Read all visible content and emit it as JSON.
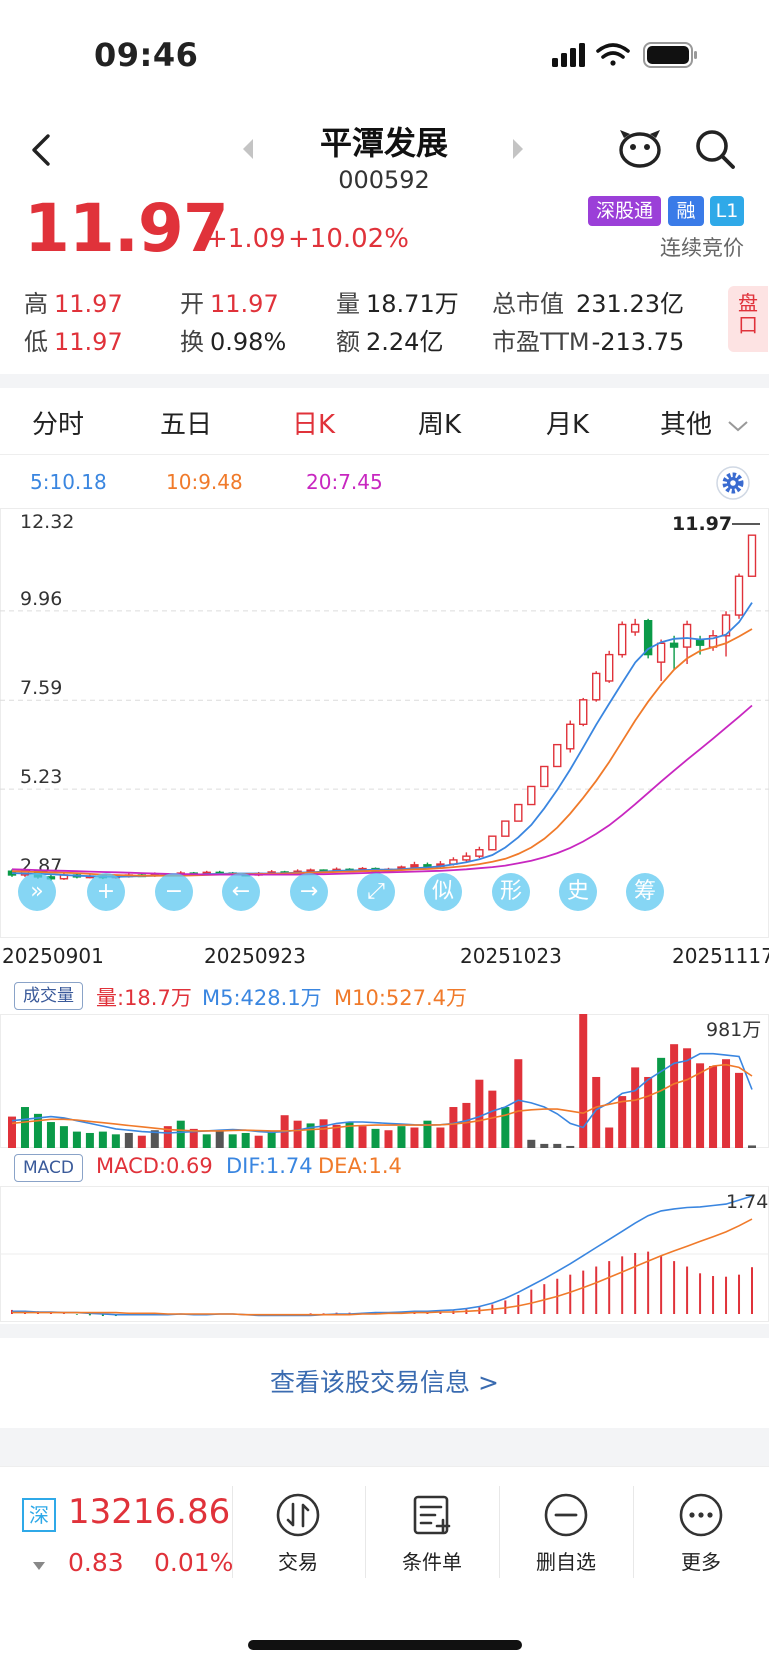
{
  "status_bar": {
    "time": "09:46"
  },
  "header": {
    "name": "平潭发展",
    "code": "000592"
  },
  "quote": {
    "price": "11.97",
    "change": "+1.09",
    "change_pct": "+10.02%",
    "badges": [
      "深股通",
      "融",
      "L1"
    ],
    "auction_status": "连续竞价"
  },
  "stats": {
    "high_label": "高",
    "high": "11.97",
    "low_label": "低",
    "low": "11.97",
    "open_label": "开",
    "open": "11.97",
    "turnover_label": "换",
    "turnover": "0.98%",
    "volume_label": "量",
    "volume": "18.71万",
    "amount_label": "额",
    "amount": "2.24亿",
    "mktcap_label": "总市值",
    "mktcap": "231.23亿",
    "pe_label": "市盈TTM",
    "pe": "-213.75",
    "pankou": "盘口"
  },
  "tabs": [
    "分时",
    "五日",
    "日K",
    "周K",
    "月K",
    "其他"
  ],
  "active_tab": "日K",
  "ma": {
    "ma5": "5:10.18",
    "ma10": "10:9.48",
    "ma20": "20:7.45"
  },
  "colors": {
    "up": "#e0323a",
    "down": "#0a9a48",
    "ma5": "#3a86e0",
    "ma10": "#f07a2a",
    "ma20": "#c827c0"
  },
  "kline": {
    "y_ticks": [
      "12.32",
      "9.96",
      "7.59",
      "5.23",
      "2.87"
    ],
    "y_tick_values": [
      12.32,
      9.96,
      7.59,
      5.23,
      2.87
    ],
    "last_price_label": "11.97",
    "dates": [
      "20250901",
      "20250923",
      "20251023",
      "20251117"
    ],
    "candles": [
      [
        3.05,
        2.95,
        3.1,
        2.9
      ],
      [
        2.95,
        3.05,
        3.12,
        2.9
      ],
      [
        3.05,
        2.9,
        3.08,
        2.85
      ],
      [
        2.9,
        2.85,
        2.95,
        2.8
      ],
      [
        2.85,
        2.95,
        3.0,
        2.82
      ],
      [
        2.95,
        2.9,
        2.98,
        2.86
      ],
      [
        2.9,
        2.92,
        2.96,
        2.86
      ],
      [
        2.92,
        2.88,
        2.95,
        2.84
      ],
      [
        2.88,
        2.92,
        2.96,
        2.85
      ],
      [
        2.92,
        2.95,
        3.0,
        2.88
      ],
      [
        2.95,
        2.93,
        2.99,
        2.9
      ],
      [
        2.93,
        2.97,
        3.02,
        2.9
      ],
      [
        2.97,
        2.95,
        3.0,
        2.92
      ],
      [
        2.95,
        3.0,
        3.05,
        2.92
      ],
      [
        3.0,
        2.97,
        3.03,
        2.94
      ],
      [
        2.97,
        3.02,
        3.06,
        2.94
      ],
      [
        3.02,
        3.0,
        3.06,
        2.97
      ],
      [
        3.0,
        2.97,
        3.03,
        2.94
      ],
      [
        2.97,
        2.95,
        3.0,
        2.92
      ],
      [
        2.95,
        2.99,
        3.03,
        2.92
      ],
      [
        2.99,
        3.03,
        3.08,
        2.96
      ],
      [
        3.03,
        3.0,
        3.06,
        2.98
      ],
      [
        3.0,
        3.05,
        3.1,
        2.98
      ],
      [
        3.05,
        3.08,
        3.12,
        3.02
      ],
      [
        3.08,
        3.04,
        3.1,
        3.01
      ],
      [
        3.04,
        3.1,
        3.15,
        3.02
      ],
      [
        3.1,
        3.07,
        3.13,
        3.04
      ],
      [
        3.07,
        3.12,
        3.16,
        3.05
      ],
      [
        3.12,
        3.05,
        3.15,
        3.02
      ],
      [
        3.05,
        3.1,
        3.14,
        3.02
      ],
      [
        3.1,
        3.16,
        3.2,
        3.06
      ],
      [
        3.16,
        3.22,
        3.3,
        3.12
      ],
      [
        3.22,
        3.18,
        3.28,
        3.14
      ],
      [
        3.18,
        3.24,
        3.32,
        3.15
      ],
      [
        3.24,
        3.35,
        3.42,
        3.2
      ],
      [
        3.35,
        3.45,
        3.55,
        3.3
      ],
      [
        3.45,
        3.62,
        3.7,
        3.4
      ],
      [
        3.62,
        3.98,
        3.98,
        3.6
      ],
      [
        3.98,
        4.38,
        4.38,
        3.98
      ],
      [
        4.38,
        4.82,
        4.82,
        4.38
      ],
      [
        4.82,
        5.3,
        5.3,
        4.82
      ],
      [
        5.3,
        5.83,
        5.83,
        5.3
      ],
      [
        5.83,
        6.41,
        6.41,
        5.83
      ],
      [
        6.3,
        6.95,
        7.05,
        6.2
      ],
      [
        6.95,
        7.6,
        7.65,
        6.9
      ],
      [
        7.6,
        8.3,
        8.36,
        7.55
      ],
      [
        8.1,
        8.8,
        8.9,
        8.05
      ],
      [
        8.8,
        9.6,
        9.68,
        8.72
      ],
      [
        9.4,
        9.6,
        9.75,
        9.3
      ],
      [
        9.7,
        8.8,
        9.75,
        8.7
      ],
      [
        8.6,
        9.1,
        9.2,
        8.1
      ],
      [
        9.1,
        9.0,
        9.3,
        8.4
      ],
      [
        9.0,
        9.6,
        9.7,
        8.55
      ],
      [
        9.2,
        9.05,
        9.3,
        8.8
      ],
      [
        9.0,
        9.3,
        9.45,
        8.9
      ],
      [
        9.3,
        9.85,
        9.95,
        8.75
      ],
      [
        9.85,
        10.88,
        10.95,
        9.75
      ],
      [
        10.88,
        11.97,
        11.97,
        10.88
      ]
    ],
    "ma5": [
      3.0,
      2.99,
      2.98,
      2.97,
      2.95,
      2.93,
      2.92,
      2.91,
      2.9,
      2.91,
      2.92,
      2.93,
      2.94,
      2.95,
      2.96,
      2.97,
      2.98,
      2.99,
      2.99,
      2.99,
      2.99,
      3.0,
      3.01,
      3.02,
      3.04,
      3.06,
      3.07,
      3.08,
      3.09,
      3.09,
      3.1,
      3.13,
      3.15,
      3.18,
      3.23,
      3.29,
      3.37,
      3.48,
      3.68,
      3.95,
      4.28,
      4.72,
      5.21,
      5.75,
      6.34,
      6.94,
      7.5,
      8.05,
      8.59,
      8.95,
      9.13,
      9.22,
      9.24,
      9.2,
      9.23,
      9.33,
      9.66,
      10.18
    ],
    "ma10": [
      3.05,
      3.04,
      3.03,
      3.02,
      3.01,
      3.0,
      2.98,
      2.96,
      2.95,
      2.94,
      2.93,
      2.93,
      2.93,
      2.93,
      2.94,
      2.95,
      2.96,
      2.97,
      2.97,
      2.98,
      2.98,
      2.99,
      3.0,
      3.01,
      3.02,
      3.03,
      3.04,
      3.05,
      3.06,
      3.06,
      3.08,
      3.1,
      3.11,
      3.13,
      3.16,
      3.19,
      3.24,
      3.3,
      3.38,
      3.51,
      3.68,
      3.91,
      4.21,
      4.58,
      5.0,
      5.45,
      5.95,
      6.5,
      7.05,
      7.55,
      8.0,
      8.4,
      8.7,
      8.9,
      9.0,
      9.1,
      9.28,
      9.48
    ],
    "ma20": [
      3.1,
      3.09,
      3.08,
      3.07,
      3.06,
      3.05,
      3.04,
      3.03,
      3.02,
      3.01,
      3.0,
      2.99,
      2.98,
      2.97,
      2.97,
      2.96,
      2.96,
      2.96,
      2.96,
      2.96,
      2.96,
      2.96,
      2.96,
      2.97,
      2.97,
      2.98,
      2.99,
      3.0,
      3.01,
      3.02,
      3.03,
      3.04,
      3.05,
      3.06,
      3.08,
      3.1,
      3.13,
      3.16,
      3.2,
      3.26,
      3.33,
      3.42,
      3.53,
      3.67,
      3.84,
      4.04,
      4.27,
      4.54,
      4.83,
      5.13,
      5.43,
      5.72,
      6.01,
      6.29,
      6.57,
      6.86,
      7.15,
      7.45
    ]
  },
  "toolbar": [
    "»",
    "+",
    "−",
    "←",
    "→",
    "⤢",
    "似",
    "形",
    "史",
    "筹"
  ],
  "volume": {
    "label": "成交量",
    "vol": "量:18.7万",
    "m5": "M5:428.1万",
    "m10": "M10:527.4万",
    "max_label": "981万",
    "max": 981,
    "bars": [
      [
        230,
        1
      ],
      [
        300,
        0
      ],
      [
        250,
        0
      ],
      [
        190,
        0
      ],
      [
        160,
        0
      ],
      [
        120,
        0
      ],
      [
        110,
        0
      ],
      [
        120,
        0
      ],
      [
        100,
        0
      ],
      [
        110,
        2
      ],
      [
        90,
        1
      ],
      [
        130,
        2
      ],
      [
        160,
        1
      ],
      [
        200,
        0
      ],
      [
        140,
        1
      ],
      [
        100,
        0
      ],
      [
        130,
        2
      ],
      [
        100,
        0
      ],
      [
        110,
        0
      ],
      [
        90,
        1
      ],
      [
        120,
        0
      ],
      [
        240,
        1
      ],
      [
        200,
        1
      ],
      [
        180,
        0
      ],
      [
        210,
        1
      ],
      [
        170,
        1
      ],
      [
        190,
        0
      ],
      [
        160,
        1
      ],
      [
        140,
        0
      ],
      [
        130,
        1
      ],
      [
        160,
        0
      ],
      [
        150,
        1
      ],
      [
        200,
        0
      ],
      [
        150,
        1
      ],
      [
        300,
        1
      ],
      [
        330,
        1
      ],
      [
        500,
        1
      ],
      [
        420,
        1
      ],
      [
        300,
        0
      ],
      [
        650,
        1
      ],
      [
        60,
        2
      ],
      [
        30,
        2
      ],
      [
        30,
        2
      ],
      [
        15,
        2
      ],
      [
        981,
        1
      ],
      [
        520,
        1
      ],
      [
        150,
        1
      ],
      [
        380,
        1
      ],
      [
        590,
        1
      ],
      [
        520,
        1
      ],
      [
        660,
        0
      ],
      [
        760,
        1
      ],
      [
        730,
        1
      ],
      [
        620,
        1
      ],
      [
        600,
        1
      ],
      [
        650,
        1
      ],
      [
        550,
        1
      ],
      [
        18.7,
        2
      ]
    ],
    "m5_line": [
      200,
      210,
      220,
      230,
      220,
      200,
      180,
      160,
      140,
      130,
      120,
      115,
      110,
      115,
      120,
      125,
      130,
      135,
      130,
      120,
      115,
      120,
      130,
      150,
      160,
      180,
      190,
      190,
      185,
      180,
      175,
      170,
      168,
      170,
      180,
      200,
      230,
      270,
      300,
      350,
      330,
      300,
      250,
      180,
      150,
      280,
      330,
      400,
      420,
      500,
      560,
      620,
      640,
      690,
      690,
      680,
      670,
      428.1
    ],
    "m10_line": [
      180,
      190,
      200,
      210,
      210,
      205,
      195,
      185,
      175,
      165,
      155,
      145,
      135,
      130,
      125,
      125,
      125,
      128,
      130,
      128,
      125,
      125,
      128,
      135,
      140,
      150,
      160,
      165,
      168,
      168,
      168,
      168,
      168,
      170,
      175,
      185,
      200,
      220,
      240,
      270,
      280,
      285,
      285,
      270,
      255,
      300,
      320,
      340,
      350,
      380,
      420,
      470,
      500,
      550,
      600,
      610,
      590,
      527.4
    ]
  },
  "macd": {
    "label": "MACD",
    "macd": "MACD:0.69",
    "dif": "DIF:1.74",
    "dea": "DEA:1.4",
    "top_label": "1.74",
    "hist": [
      0.06,
      0.05,
      0.04,
      0.02,
      0.01,
      -0.01,
      -0.02,
      -0.03,
      -0.03,
      -0.02,
      -0.02,
      -0.01,
      -0.01,
      0.0,
      -0.01,
      -0.01,
      0.0,
      0.0,
      -0.01,
      -0.02,
      -0.01,
      -0.01,
      0.0,
      0.01,
      0.01,
      0.02,
      0.02,
      0.02,
      0.03,
      0.02,
      0.03,
      0.04,
      0.03,
      0.04,
      0.05,
      0.07,
      0.1,
      0.14,
      0.2,
      0.28,
      0.36,
      0.44,
      0.52,
      0.58,
      0.64,
      0.7,
      0.78,
      0.85,
      0.9,
      0.92,
      0.86,
      0.78,
      0.7,
      0.6,
      0.56,
      0.55,
      0.58,
      0.69
    ],
    "dif_line": [
      0.04,
      0.04,
      0.03,
      0.03,
      0.02,
      0.02,
      0.01,
      0.0,
      -0.01,
      -0.01,
      -0.01,
      -0.01,
      -0.01,
      0.0,
      -0.01,
      -0.01,
      0.0,
      0.0,
      -0.01,
      -0.02,
      -0.02,
      -0.02,
      -0.02,
      -0.02,
      -0.01,
      0.0,
      0.0,
      0.01,
      0.02,
      0.02,
      0.03,
      0.04,
      0.04,
      0.05,
      0.06,
      0.08,
      0.11,
      0.16,
      0.23,
      0.32,
      0.42,
      0.52,
      0.63,
      0.74,
      0.86,
      0.98,
      1.1,
      1.22,
      1.34,
      1.45,
      1.52,
      1.55,
      1.57,
      1.58,
      1.6,
      1.62,
      1.68,
      1.74
    ],
    "dea_line": [
      0.02,
      0.02,
      0.02,
      0.02,
      0.02,
      0.02,
      0.02,
      0.02,
      0.02,
      0.01,
      0.01,
      0.01,
      0.0,
      0.0,
      0.0,
      0.0,
      0.0,
      0.0,
      -0.01,
      -0.01,
      -0.01,
      -0.01,
      -0.01,
      -0.01,
      -0.01,
      -0.01,
      -0.01,
      0.0,
      0.0,
      0.01,
      0.01,
      0.02,
      0.02,
      0.03,
      0.03,
      0.04,
      0.05,
      0.07,
      0.09,
      0.12,
      0.16,
      0.21,
      0.26,
      0.32,
      0.39,
      0.46,
      0.54,
      0.62,
      0.7,
      0.78,
      0.86,
      0.93,
      1.0,
      1.07,
      1.14,
      1.21,
      1.3,
      1.4
    ]
  },
  "trade_info_link": "查看该股交易信息 >",
  "index": {
    "badge": "深",
    "value": "13216.86",
    "change": "0.83",
    "change_pct": "0.01%"
  },
  "actions": [
    "交易",
    "条件单",
    "删自选",
    "更多"
  ]
}
